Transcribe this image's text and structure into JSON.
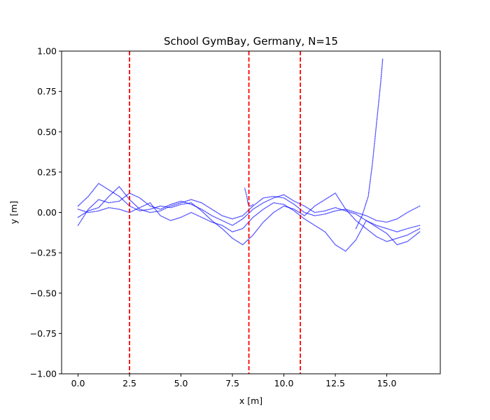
{
  "chart_data": {
    "type": "scatter",
    "title": "School GymBay, Germany, N=15",
    "xlabel": "x [m]",
    "ylabel": "y [m]",
    "xlim": [
      -0.8,
      17.6
    ],
    "ylim": [
      -1.0,
      1.0
    ],
    "xticks": [
      0.0,
      2.5,
      5.0,
      7.5,
      10.0,
      12.5,
      15.0
    ],
    "xtick_labels": [
      "0.0",
      "2.5",
      "5.0",
      "7.5",
      "10.0",
      "12.5",
      "15.0"
    ],
    "yticks": [
      -1.0,
      -0.75,
      -0.5,
      -0.25,
      0.0,
      0.25,
      0.5,
      0.75,
      1.0
    ],
    "ytick_labels": [
      "−1.00",
      "−0.75",
      "−0.50",
      "−0.25",
      "0.00",
      "0.25",
      "0.50",
      "0.75",
      "1.00"
    ],
    "grid": false,
    "vertical_lines": [
      {
        "x": 2.5,
        "color": "#ff0000",
        "style": "dashed"
      },
      {
        "x": 8.3,
        "color": "#ff0000",
        "style": "dashed"
      },
      {
        "x": 10.8,
        "color": "#ff0000",
        "style": "dashed"
      }
    ],
    "point_color": "#0000ff",
    "series": [
      {
        "points": [
          [
            0.0,
            -0.08
          ],
          [
            0.5,
            0.02
          ],
          [
            1.0,
            0.08
          ],
          [
            1.5,
            0.06
          ],
          [
            2.0,
            0.07
          ],
          [
            2.5,
            0.12
          ],
          [
            3.0,
            0.09
          ],
          [
            3.5,
            0.04
          ],
          [
            4.0,
            0.02
          ],
          [
            4.5,
            0.05
          ],
          [
            5.0,
            0.07
          ],
          [
            5.5,
            0.05
          ],
          [
            6.0,
            0.02
          ],
          [
            6.5,
            -0.02
          ],
          [
            7.0,
            -0.05
          ],
          [
            7.5,
            -0.08
          ],
          [
            8.0,
            -0.04
          ],
          [
            8.5,
            0.02
          ],
          [
            9.0,
            0.06
          ],
          [
            9.5,
            0.09
          ],
          [
            10.0,
            0.11
          ],
          [
            10.5,
            0.07
          ],
          [
            11.0,
            0.04
          ],
          [
            11.5,
            0.0
          ],
          [
            12.0,
            0.01
          ],
          [
            12.5,
            0.03
          ],
          [
            13.0,
            0.01
          ],
          [
            13.5,
            -0.01
          ],
          [
            14.0,
            -0.05
          ],
          [
            14.5,
            -0.08
          ],
          [
            15.0,
            -0.1
          ],
          [
            15.5,
            -0.12
          ],
          [
            16.0,
            -0.1
          ],
          [
            16.6,
            -0.08
          ]
        ]
      },
      {
        "points": [
          [
            0.0,
            0.04
          ],
          [
            0.5,
            0.1
          ],
          [
            1.0,
            0.18
          ],
          [
            1.5,
            0.14
          ],
          [
            2.0,
            0.1
          ],
          [
            2.5,
            0.04
          ],
          [
            3.0,
            0.01
          ],
          [
            3.5,
            0.02
          ],
          [
            4.0,
            0.04
          ],
          [
            4.5,
            0.03
          ],
          [
            5.0,
            0.05
          ],
          [
            5.5,
            0.06
          ],
          [
            6.0,
            0.01
          ],
          [
            6.5,
            -0.05
          ],
          [
            7.0,
            -0.1
          ],
          [
            7.5,
            -0.16
          ],
          [
            8.0,
            -0.2
          ],
          [
            8.5,
            -0.14
          ],
          [
            9.0,
            -0.06
          ],
          [
            9.5,
            0.0
          ],
          [
            10.0,
            0.04
          ],
          [
            10.5,
            0.02
          ],
          [
            11.0,
            -0.02
          ],
          [
            11.5,
            0.04
          ],
          [
            12.0,
            0.08
          ],
          [
            12.5,
            0.12
          ],
          [
            13.0,
            0.02
          ],
          [
            13.5,
            -0.05
          ],
          [
            14.0,
            -0.1
          ],
          [
            14.5,
            -0.15
          ],
          [
            15.0,
            -0.18
          ],
          [
            15.5,
            -0.16
          ],
          [
            16.0,
            -0.14
          ],
          [
            16.6,
            -0.1
          ]
        ]
      },
      {
        "points": [
          [
            0.0,
            -0.03
          ],
          [
            0.5,
            0.01
          ],
          [
            1.0,
            0.03
          ],
          [
            1.5,
            0.1
          ],
          [
            2.0,
            0.16
          ],
          [
            2.5,
            0.08
          ],
          [
            3.0,
            0.02
          ],
          [
            3.5,
            0.0
          ],
          [
            4.0,
            0.01
          ],
          [
            4.5,
            0.04
          ],
          [
            5.0,
            0.06
          ],
          [
            5.5,
            0.08
          ],
          [
            6.0,
            0.06
          ],
          [
            6.5,
            0.02
          ],
          [
            7.0,
            -0.02
          ],
          [
            7.5,
            -0.04
          ],
          [
            8.0,
            -0.02
          ],
          [
            8.5,
            0.04
          ],
          [
            9.0,
            0.09
          ],
          [
            9.5,
            0.1
          ],
          [
            10.0,
            0.09
          ],
          [
            10.5,
            0.05
          ],
          [
            11.0,
            0.0
          ],
          [
            11.5,
            -0.02
          ],
          [
            12.0,
            -0.01
          ],
          [
            12.5,
            0.01
          ],
          [
            13.0,
            0.02
          ],
          [
            13.5,
            0.0
          ],
          [
            14.0,
            -0.02
          ],
          [
            14.5,
            -0.05
          ],
          [
            15.0,
            -0.06
          ],
          [
            15.5,
            -0.04
          ],
          [
            16.0,
            0.0
          ],
          [
            16.6,
            0.04
          ]
        ]
      },
      {
        "points": [
          [
            0.0,
            0.02
          ],
          [
            0.5,
            0.0
          ],
          [
            1.0,
            0.01
          ],
          [
            1.5,
            0.03
          ],
          [
            2.0,
            0.02
          ],
          [
            2.5,
            0.0
          ],
          [
            3.0,
            0.03
          ],
          [
            3.5,
            0.06
          ],
          [
            4.0,
            -0.02
          ],
          [
            4.5,
            -0.05
          ],
          [
            5.0,
            -0.03
          ],
          [
            5.5,
            0.0
          ],
          [
            6.0,
            -0.03
          ],
          [
            6.5,
            -0.06
          ],
          [
            7.0,
            -0.08
          ],
          [
            7.5,
            -0.12
          ],
          [
            8.0,
            -0.1
          ],
          [
            8.5,
            -0.03
          ],
          [
            9.0,
            0.02
          ],
          [
            9.5,
            0.06
          ],
          [
            10.0,
            0.05
          ],
          [
            10.5,
            0.01
          ],
          [
            11.0,
            -0.04
          ],
          [
            11.5,
            -0.08
          ],
          [
            12.0,
            -0.12
          ],
          [
            12.5,
            -0.2
          ],
          [
            13.0,
            -0.24
          ],
          [
            13.5,
            -0.17
          ],
          [
            14.0,
            -0.05
          ],
          [
            14.5,
            -0.09
          ],
          [
            15.0,
            -0.13
          ],
          [
            15.5,
            -0.2
          ],
          [
            16.0,
            -0.18
          ],
          [
            16.6,
            -0.12
          ]
        ]
      },
      {
        "points": [
          [
            13.5,
            -0.1
          ],
          [
            13.8,
            -0.02
          ],
          [
            14.1,
            0.1
          ],
          [
            14.3,
            0.3
          ],
          [
            14.5,
            0.55
          ],
          [
            14.7,
            0.8
          ],
          [
            14.8,
            0.95
          ]
        ]
      },
      {
        "points": [
          [
            8.1,
            0.15
          ],
          [
            8.2,
            0.1
          ],
          [
            8.25,
            0.06
          ],
          [
            8.3,
            0.04
          ],
          [
            8.4,
            0.04
          ],
          [
            8.5,
            0.05
          ]
        ]
      }
    ]
  }
}
